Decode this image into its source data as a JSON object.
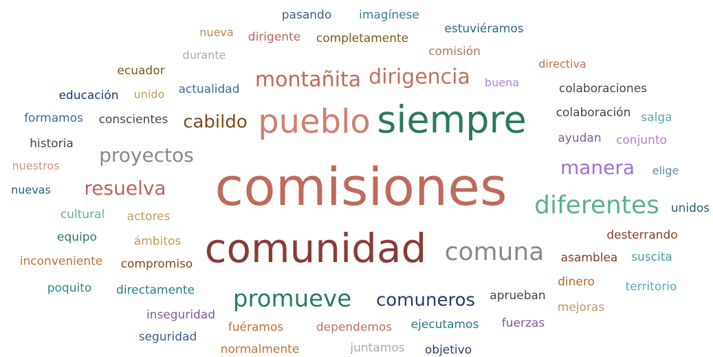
{
  "words": [
    "pasando",
    "imagínese",
    "nueva",
    "dirigente",
    "completamente",
    "estuviéramos",
    "durante",
    "comisión",
    "ecuador",
    "directiva",
    "educación",
    "unido",
    "actualidad",
    "montañita",
    "dirigencia",
    "buena",
    "colaboraciones",
    "formamos",
    "conscientes",
    "cabildo",
    "pueblo",
    "siempre",
    "colaboración",
    "salga",
    "ayudan",
    "conjunto",
    "historia",
    "proyectos",
    "nuestros",
    "manera",
    "elige",
    "resuelva",
    "comisiones",
    "nuevas",
    "diferentes",
    "unidos",
    "cultural",
    "actores",
    "equipo",
    "desterrando",
    "ámbitos",
    "comunidad",
    "comuna",
    "inconveniente",
    "compromiso",
    "asamblea",
    "suscita",
    "dinero",
    "poquito",
    "directamente",
    "territorio",
    "promueve",
    "comuneros",
    "aprueban",
    "mejoras",
    "inseguridad",
    "fuéramos",
    "dependemos",
    "ejecutamos",
    "fuerzas",
    "seguridad",
    "normalmente",
    "juntamos",
    "objetivo"
  ]
}
